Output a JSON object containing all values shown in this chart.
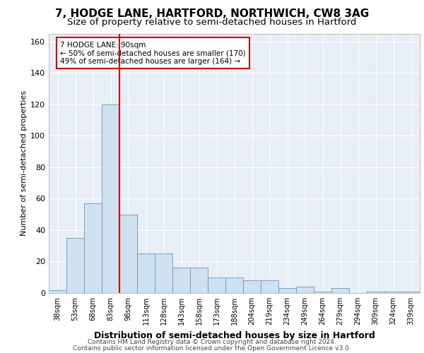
{
  "title": "7, HODGE LANE, HARTFORD, NORTHWICH, CW8 3AG",
  "subtitle": "Size of property relative to semi-detached houses in Hartford",
  "xlabel": "Distribution of semi-detached houses by size in Hartford",
  "ylabel": "Number of semi-detached properties",
  "footer1": "Contains HM Land Registry data © Crown copyright and database right 2024.",
  "footer2": "Contains public sector information licensed under the Open Government Licence v3.0.",
  "bar_labels": [
    "38sqm",
    "53sqm",
    "68sqm",
    "83sqm",
    "98sqm",
    "113sqm",
    "128sqm",
    "143sqm",
    "158sqm",
    "173sqm",
    "188sqm",
    "204sqm",
    "219sqm",
    "234sqm",
    "249sqm",
    "264sqm",
    "279sqm",
    "294sqm",
    "309sqm",
    "324sqm",
    "339sqm"
  ],
  "bar_values": [
    2,
    35,
    57,
    120,
    50,
    25,
    25,
    16,
    16,
    10,
    10,
    8,
    8,
    3,
    4,
    1,
    3,
    0,
    1,
    1,
    1
  ],
  "bar_color": "#cfe0ef",
  "bar_edge_color": "#6699bb",
  "vline_x": 3.5,
  "vline_color": "#cc0000",
  "annotation_text": "7 HODGE LANE: 90sqm\n← 50% of semi-detached houses are smaller (170)\n49% of semi-detached houses are larger (164) →",
  "annotation_box_color": "#ffffff",
  "annotation_box_edge": "#cc0000",
  "ylim": [
    0,
    165
  ],
  "yticks": [
    0,
    20,
    40,
    60,
    80,
    100,
    120,
    140,
    160
  ],
  "fig_bg_color": "#ffffff",
  "plot_bg_color": "#e8eef6",
  "grid_color": "#ffffff",
  "title_fontsize": 11,
  "subtitle_fontsize": 9.5,
  "xlabel_fontsize": 9,
  "ylabel_fontsize": 8,
  "footer_fontsize": 6.5
}
